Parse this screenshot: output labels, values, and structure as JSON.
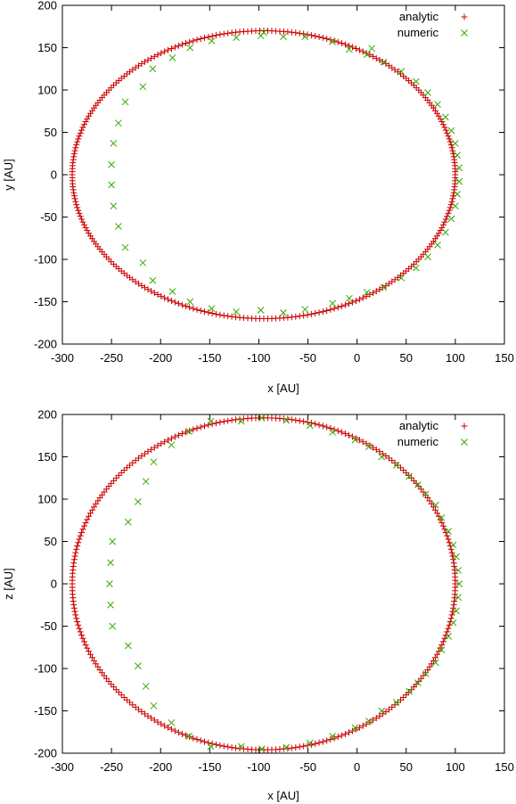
{
  "chart_data": [
    {
      "type": "scatter",
      "title": "",
      "xlabel": "x [AU]",
      "ylabel": "y [AU]",
      "xlim": [
        -300,
        150
      ],
      "ylim": [
        -200,
        200
      ],
      "xticks": [
        "-300",
        "-250",
        "-200",
        "-150",
        "-100",
        "-50",
        "0",
        "50",
        "100",
        "150"
      ],
      "yticks": [
        "-200",
        "-150",
        "-100",
        "-50",
        "0",
        "50",
        "100",
        "150",
        "200"
      ],
      "grid": false,
      "legend_position": "top-right",
      "series": [
        {
          "name": "analytic",
          "marker": "plus",
          "color": "#cc0000",
          "shape": "ellipse",
          "center": [
            -95,
            0
          ],
          "semi_axes": [
            195,
            170
          ],
          "point_count": 300
        },
        {
          "name": "numeric",
          "marker": "cross",
          "color": "#33aa00",
          "points": [
            [
              -250,
              12
            ],
            [
              -250,
              -12
            ],
            [
              -248,
              37
            ],
            [
              -248,
              -37
            ],
            [
              -243,
              61
            ],
            [
              -243,
              -61
            ],
            [
              -236,
              86
            ],
            [
              -236,
              -86
            ],
            [
              -218,
              104
            ],
            [
              -218,
              -104
            ],
            [
              -208,
              125
            ],
            [
              -208,
              -125
            ],
            [
              -188,
              138
            ],
            [
              -188,
              -138
            ],
            [
              -170,
              150
            ],
            [
              -170,
              -150
            ],
            [
              -148,
              158
            ],
            [
              -148,
              -158
            ],
            [
              -123,
              162
            ],
            [
              -123,
              -162
            ],
            [
              -98,
              164
            ],
            [
              -98,
              -160
            ],
            [
              -75,
              163
            ],
            [
              -75,
              -163
            ],
            [
              -53,
              163
            ],
            [
              -53,
              -159
            ],
            [
              -25,
              157
            ],
            [
              -25,
              -152
            ],
            [
              -8,
              148
            ],
            [
              -8,
              -146
            ],
            [
              10,
              142
            ],
            [
              10,
              -139
            ],
            [
              27,
              133
            ],
            [
              27,
              -133
            ],
            [
              45,
              122
            ],
            [
              45,
              -122
            ],
            [
              60,
              110
            ],
            [
              60,
              -110
            ],
            [
              72,
              97
            ],
            [
              72,
              -97
            ],
            [
              82,
              83
            ],
            [
              82,
              -83
            ],
            [
              90,
              68
            ],
            [
              90,
              -68
            ],
            [
              96,
              52
            ],
            [
              96,
              -52
            ],
            [
              100,
              37
            ],
            [
              100,
              -37
            ],
            [
              102,
              23
            ],
            [
              102,
              -23
            ],
            [
              104,
              8
            ],
            [
              104,
              -8
            ],
            [
              -95,
              168
            ],
            [
              15,
              149
            ]
          ]
        }
      ]
    },
    {
      "type": "scatter",
      "title": "",
      "xlabel": "x [AU]",
      "ylabel": "z [AU]",
      "xlim": [
        -300,
        150
      ],
      "ylim": [
        -200,
        200
      ],
      "xticks": [
        "-300",
        "-250",
        "-200",
        "-150",
        "-100",
        "-50",
        "0",
        "50",
        "100",
        "150"
      ],
      "yticks": [
        "-200",
        "-150",
        "-100",
        "-50",
        "0",
        "50",
        "100",
        "150",
        "200"
      ],
      "grid": false,
      "legend_position": "top-right",
      "series": [
        {
          "name": "analytic",
          "marker": "plus",
          "color": "#cc0000",
          "shape": "ellipse",
          "center": [
            -95,
            0
          ],
          "semi_axes": [
            195,
            196
          ],
          "point_count": 300
        },
        {
          "name": "numeric",
          "marker": "cross",
          "color": "#33aa00",
          "points": [
            [
              -252,
              0
            ],
            [
              -251,
              25
            ],
            [
              -251,
              -25
            ],
            [
              -249,
              50
            ],
            [
              -249,
              -50
            ],
            [
              -233,
              73
            ],
            [
              -233,
              -73
            ],
            [
              -223,
              97
            ],
            [
              -223,
              -97
            ],
            [
              -215,
              121
            ],
            [
              -215,
              -121
            ],
            [
              -207,
              144
            ],
            [
              -207,
              -144
            ],
            [
              -189,
              164
            ],
            [
              -189,
              -164
            ],
            [
              -171,
              180
            ],
            [
              -171,
              -180
            ],
            [
              -149,
              192
            ],
            [
              -149,
              -192
            ],
            [
              -118,
              192
            ],
            [
              -118,
              -192
            ],
            [
              -97,
              196
            ],
            [
              -97,
              -195
            ],
            [
              -72,
              193
            ],
            [
              -72,
              -193
            ],
            [
              -48,
              187
            ],
            [
              -48,
              -188
            ],
            [
              -25,
              179
            ],
            [
              -25,
              -180
            ],
            [
              -2,
              170
            ],
            [
              -2,
              -170
            ],
            [
              12,
              162
            ],
            [
              12,
              -162
            ],
            [
              25,
              150
            ],
            [
              25,
              -150
            ],
            [
              40,
              140
            ],
            [
              40,
              -140
            ],
            [
              53,
              127
            ],
            [
              53,
              -127
            ],
            [
              62,
              117
            ],
            [
              62,
              -117
            ],
            [
              70,
              106
            ],
            [
              70,
              -106
            ],
            [
              80,
              93
            ],
            [
              80,
              -93
            ],
            [
              86,
              78
            ],
            [
              86,
              -78
            ],
            [
              93,
              62
            ],
            [
              93,
              -62
            ],
            [
              98,
              46
            ],
            [
              98,
              -46
            ],
            [
              101,
              32
            ],
            [
              101,
              -32
            ],
            [
              103,
              16
            ],
            [
              103,
              -16
            ],
            [
              104,
              0
            ]
          ]
        }
      ]
    }
  ]
}
